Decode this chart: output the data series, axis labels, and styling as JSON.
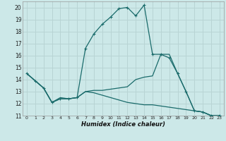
{
  "xlabel": "Humidex (Indice chaleur)",
  "bg_color": "#cce8e8",
  "grid_color": "#b8d4d4",
  "line_color": "#1a6b6b",
  "xlim": [
    -0.5,
    23.5
  ],
  "ylim": [
    11,
    20.5
  ],
  "xticks": [
    0,
    1,
    2,
    3,
    4,
    5,
    6,
    7,
    8,
    9,
    10,
    11,
    12,
    13,
    14,
    15,
    16,
    17,
    18,
    19,
    20,
    21,
    22,
    23
  ],
  "yticks": [
    11,
    12,
    13,
    14,
    15,
    16,
    17,
    18,
    19,
    20
  ],
  "line_upper_x": [
    0,
    1,
    2,
    3,
    4,
    5,
    6,
    7,
    8,
    9,
    10,
    11,
    12,
    13,
    14,
    15,
    16,
    17,
    18,
    19,
    20,
    21,
    22,
    23
  ],
  "line_upper_y": [
    14.5,
    13.9,
    13.3,
    12.1,
    12.4,
    12.4,
    12.5,
    16.6,
    17.8,
    18.6,
    19.2,
    19.9,
    20.0,
    19.3,
    20.2,
    16.1,
    16.1,
    15.8,
    14.5,
    13.0,
    11.4,
    11.3,
    11.0,
    11.0
  ],
  "line_mid_x": [
    0,
    1,
    2,
    3,
    4,
    5,
    6,
    7,
    8,
    9,
    10,
    11,
    12,
    13,
    14,
    15,
    16,
    17,
    18,
    19,
    20,
    21,
    22,
    23
  ],
  "line_mid_y": [
    14.5,
    13.9,
    13.3,
    12.1,
    12.5,
    12.4,
    12.5,
    13.0,
    13.1,
    13.1,
    13.2,
    13.3,
    13.4,
    14.0,
    14.2,
    14.3,
    16.1,
    16.1,
    14.5,
    13.0,
    11.4,
    11.3,
    11.0,
    11.0
  ],
  "line_low_x": [
    0,
    1,
    2,
    3,
    4,
    5,
    6,
    7,
    8,
    9,
    10,
    11,
    12,
    13,
    14,
    15,
    16,
    17,
    18,
    19,
    20,
    21,
    22,
    23
  ],
  "line_low_y": [
    14.5,
    13.9,
    13.3,
    12.1,
    12.4,
    12.4,
    12.5,
    13.0,
    12.9,
    12.7,
    12.5,
    12.3,
    12.1,
    12.0,
    11.9,
    11.9,
    11.8,
    11.7,
    11.6,
    11.5,
    11.4,
    11.3,
    11.0,
    11.0
  ]
}
